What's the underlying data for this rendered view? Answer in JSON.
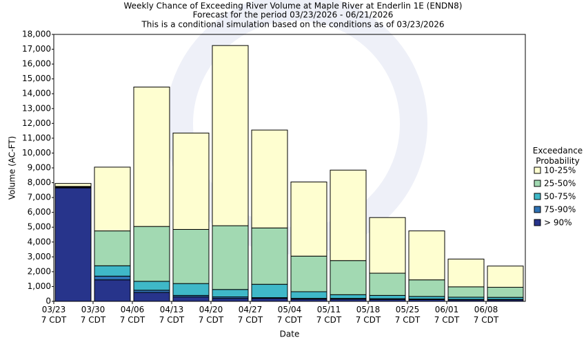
{
  "chart_data": {
    "type": "stacked_bar",
    "title": "Weekly Chance of Exceeding River Volume at Maple River at Enderlin 1E (ENDN8)",
    "subtitles": [
      "Forecast for the period 03/23/2026 - 06/21/2026",
      "This is a conditional simulation based on the conditions as of 03/23/2026"
    ],
    "xlabel": "Date",
    "ylabel": "Volume (AC-FT)",
    "legend_title": "Exceedance Probability",
    "legend_position": "right",
    "grid": false,
    "categories": [
      "03/23\n7 CDT",
      "03/30\n7 CDT",
      "04/06\n7 CDT",
      "04/13\n7 CDT",
      "04/20\n7 CDT",
      "04/27\n7 CDT",
      "05/04\n7 CDT",
      "05/11\n7 CDT",
      "05/18\n7 CDT",
      "05/25\n7 CDT",
      "06/01\n7 CDT",
      "06/08\n7 CDT"
    ],
    "series": [
      {
        "name": "> 90%",
        "color": "#27348b",
        "values": [
          7650,
          1450,
          600,
          300,
          200,
          200,
          150,
          150,
          130,
          120,
          100,
          100
        ]
      },
      {
        "name": "75-90%",
        "color": "#2f72b4",
        "values": [
          50,
          250,
          150,
          100,
          100,
          50,
          50,
          50,
          50,
          40,
          30,
          30
        ]
      },
      {
        "name": "50-75%",
        "color": "#3fb8c8",
        "values": [
          20,
          700,
          600,
          800,
          500,
          900,
          450,
          250,
          220,
          170,
          150,
          140
        ]
      },
      {
        "name": "25-50%",
        "color": "#a2d9b2",
        "values": [
          30,
          2350,
          3700,
          3650,
          4300,
          3800,
          2400,
          2300,
          1500,
          1120,
          700,
          680
        ]
      },
      {
        "name": "10-25%",
        "color": "#fefed0",
        "values": [
          200,
          4300,
          9400,
          6500,
          12150,
          6600,
          5000,
          6100,
          3750,
          3300,
          1870,
          1430
        ]
      }
    ],
    "ylim": [
      0,
      18000
    ],
    "yticks": [
      0,
      {
        "value": 1000,
        "label": "1,000"
      },
      {
        "value": 2000,
        "label": "2,000"
      },
      {
        "value": 3000,
        "label": "3,000"
      },
      {
        "value": 4000,
        "label": "4,000"
      },
      {
        "value": 5000,
        "label": "5,000"
      },
      {
        "value": 6000,
        "label": "6,000"
      },
      {
        "value": 7000,
        "label": "7,000"
      },
      {
        "value": 8000,
        "label": "8,000"
      },
      {
        "value": 9000,
        "label": "9,000"
      },
      {
        "value": 10000,
        "label": "10,000"
      },
      {
        "value": 11000,
        "label": "11,000"
      },
      {
        "value": 12000,
        "label": "12,000"
      },
      {
        "value": 13000,
        "label": "13,000"
      },
      {
        "value": 14000,
        "label": "14,000"
      },
      {
        "value": 15000,
        "label": "15,000"
      },
      {
        "value": 16000,
        "label": "16,000"
      },
      {
        "value": 17000,
        "label": "17,000"
      },
      {
        "value": 18000,
        "label": "18,000"
      }
    ]
  }
}
